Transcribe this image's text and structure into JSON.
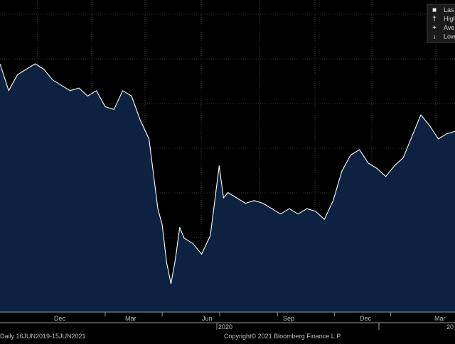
{
  "chart_data": {
    "type": "area",
    "x_tick_labels": [
      "Dec",
      "Mar",
      "Jun",
      "Sep",
      "Dec",
      "Mar"
    ],
    "x_year_labels": [
      "2020",
      "20"
    ],
    "footer_left": "Daily 16JUN2019-15JUN2021",
    "footer_center": "Copyright© 2021 Bloomberg Finance L.P.",
    "legend": [
      {
        "symbol": "■",
        "label": "Las"
      },
      {
        "symbol": "†",
        "label": "High"
      },
      {
        "symbol": "+",
        "label": "Ave"
      },
      {
        "symbol": "↓",
        "label": "Low"
      }
    ],
    "x": [
      "2019-06-16",
      "2019-06-30",
      "2019-07-14",
      "2019-07-28",
      "2019-08-11",
      "2019-08-25",
      "2019-09-08",
      "2019-09-22",
      "2019-10-06",
      "2019-10-20",
      "2019-11-03",
      "2019-11-17",
      "2019-12-01",
      "2019-12-15",
      "2019-12-29",
      "2020-01-12",
      "2020-01-26",
      "2020-02-09",
      "2020-02-23",
      "2020-03-01",
      "2020-03-08",
      "2020-03-15",
      "2020-03-22",
      "2020-03-29",
      "2020-04-05",
      "2020-04-19",
      "2020-05-03",
      "2020-05-17",
      "2020-05-31",
      "2020-06-07",
      "2020-06-14",
      "2020-06-28",
      "2020-07-12",
      "2020-07-26",
      "2020-08-09",
      "2020-08-23",
      "2020-09-06",
      "2020-09-20",
      "2020-10-04",
      "2020-10-18",
      "2020-11-01",
      "2020-11-15",
      "2020-11-29",
      "2020-12-13",
      "2020-12-27",
      "2021-01-10",
      "2021-01-24",
      "2021-02-07",
      "2021-02-21",
      "2021-03-07",
      "2021-03-21",
      "2021-04-04",
      "2021-04-18",
      "2021-05-02",
      "2021-05-16",
      "2021-05-30",
      "2021-06-15"
    ],
    "values": [
      82,
      72,
      78,
      80,
      82,
      80,
      76,
      74,
      72,
      73,
      70,
      72,
      66,
      65,
      72,
      70,
      61,
      54,
      28,
      22,
      8,
      0,
      9,
      21,
      17,
      15,
      11,
      18,
      44,
      32,
      34,
      32,
      30,
      31,
      30,
      28,
      26,
      28,
      26,
      28,
      27,
      24,
      31,
      42,
      48,
      50,
      45,
      43,
      40,
      44,
      47,
      55,
      63,
      59,
      54,
      56,
      57
    ],
    "ylim": [
      -10,
      100
    ],
    "grid": true,
    "legend_position": "top-right"
  }
}
